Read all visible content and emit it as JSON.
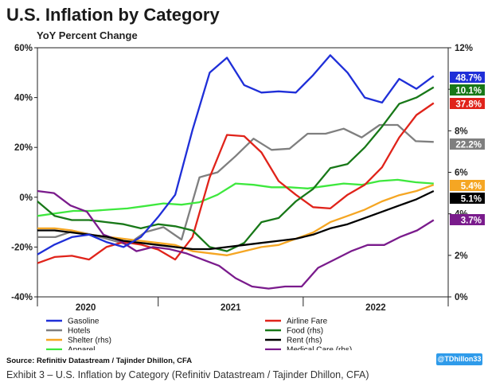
{
  "chart_data": {
    "type": "line",
    "title": "U.S. Inflation by Category",
    "subtitle": "YoY Percent Change",
    "left_axis": {
      "min": -40,
      "max": 60,
      "ticks": [
        60,
        40,
        20,
        0,
        -20,
        -40
      ],
      "tick_labels": [
        "60%",
        "40%",
        "20%",
        "0%",
        "-20%",
        "-40%"
      ]
    },
    "right_axis": {
      "min": 0,
      "max": 12,
      "ticks": [
        12,
        10,
        8,
        6,
        4,
        2,
        0
      ],
      "tick_labels": [
        "12%",
        "10%",
        "8%",
        "6%",
        "4%",
        "2%",
        "0%"
      ]
    },
    "x_axis": {
      "start": 2019.667,
      "end": 2022.5,
      "year_labels": [
        {
          "label": "2020",
          "x": 2020.0
        },
        {
          "label": "2021",
          "x": 2021.0
        },
        {
          "label": "2022",
          "x": 2022.0
        }
      ],
      "ticks": [
        2019.667,
        2020.5,
        2021.5,
        2022.5
      ]
    },
    "series": [
      {
        "name": "Gasoline",
        "legend": "Gasoline",
        "axis": "left",
        "color": "#1f2fd8",
        "end_label": "48.7%",
        "label_bg": "#1f2fd8",
        "label_fg": "#ffffff",
        "values": [
          -23,
          -19,
          -16,
          -15,
          -18,
          -20,
          -16,
          -8,
          1,
          27,
          50,
          56,
          45,
          42,
          42.5,
          42,
          49,
          57,
          50,
          40,
          38,
          47.5,
          43.5,
          48.7
        ]
      },
      {
        "name": "Hotels",
        "legend": "Hotels",
        "axis": "left",
        "color": "#7f7f7f",
        "end_label": "22.2%",
        "label_bg": "#7f7f7f",
        "label_fg": "#ffffff",
        "values": [
          -16,
          -16,
          -13.5,
          -15,
          -17,
          -19,
          -14,
          -12,
          -17,
          8,
          10,
          16.5,
          23.5,
          19,
          19.5,
          25.5,
          25.5,
          27.5,
          24,
          29,
          29,
          22.5,
          22.2
        ]
      },
      {
        "name": "Shelter",
        "legend": "Shelter (rhs)",
        "axis": "right",
        "color": "#f5a623",
        "end_label": "5.4%",
        "label_bg": "#f5a623",
        "label_fg": "#ffffff",
        "values": [
          3.3,
          3.3,
          3.2,
          3.0,
          2.9,
          2.8,
          2.7,
          2.6,
          2.5,
          2.2,
          2.1,
          2.0,
          2.2,
          2.4,
          2.5,
          2.8,
          3.1,
          3.6,
          3.9,
          4.2,
          4.6,
          4.9,
          5.1,
          5.4
        ]
      },
      {
        "name": "Apparel",
        "legend": "Apparel",
        "axis": "left",
        "color": "#3ee83e",
        "end_label": "",
        "label_bg": "",
        "label_fg": "",
        "values": [
          -7.5,
          -6.5,
          -5.5,
          -5.5,
          -5,
          -4.5,
          -3.5,
          -2.5,
          -3,
          -2,
          1,
          5.5,
          5,
          4,
          4,
          3.5,
          4.5,
          5.5,
          5,
          6.5,
          7,
          6,
          5.5
        ]
      },
      {
        "name": "Airline Fare",
        "legend": "Airline Fare",
        "axis": "left",
        "color": "#e0231a",
        "end_label": "37.8%",
        "label_bg": "#e0231a",
        "label_fg": "#ffffff",
        "values": [
          -26.5,
          -24,
          -23.5,
          -25,
          -20,
          -18,
          -19,
          -21,
          -25,
          -16,
          8,
          25,
          24.5,
          18,
          6.5,
          1,
          -4,
          -4.5,
          1,
          5,
          12,
          24,
          33,
          37.8
        ]
      },
      {
        "name": "Food",
        "legend": "Food (rhs)",
        "axis": "right",
        "color": "#187818",
        "end_label": "10.1%",
        "label_bg": "#187818",
        "label_fg": "#ffffff",
        "values": [
          4.6,
          3.9,
          3.7,
          3.7,
          3.6,
          3.5,
          3.3,
          3.5,
          3.4,
          3.2,
          2.4,
          2.2,
          2.6,
          3.6,
          3.8,
          4.6,
          5.2,
          6.2,
          6.4,
          7.2,
          8.2,
          9.3,
          9.6,
          10.1
        ]
      },
      {
        "name": "Rent",
        "legend": "Rent (rhs)",
        "axis": "right",
        "color": "#000000",
        "end_label": "5.1%",
        "label_bg": "#000000",
        "label_fg": "#ffffff",
        "values": [
          3.2,
          3.2,
          3.1,
          3.0,
          2.9,
          2.7,
          2.6,
          2.5,
          2.4,
          2.3,
          2.3,
          2.4,
          2.5,
          2.6,
          2.7,
          2.8,
          3.0,
          3.3,
          3.5,
          3.8,
          4.1,
          4.4,
          4.7,
          5.1
        ]
      },
      {
        "name": "Medical Care",
        "legend": "Medical Care (rhs)",
        "axis": "right",
        "color": "#7a1b8c",
        "end_label": "3.7%",
        "label_bg": "#7a1b8c",
        "label_fg": "#ffffff",
        "values": [
          5.1,
          5.0,
          4.4,
          4.1,
          3.0,
          2.7,
          2.2,
          2.4,
          2.3,
          2.1,
          1.8,
          1.5,
          0.9,
          0.5,
          0.4,
          0.5,
          0.5,
          1.4,
          1.8,
          2.2,
          2.5,
          2.5,
          2.9,
          3.2,
          3.7
        ]
      }
    ]
  },
  "source": "Source: Refinitiv Datastream / Tajinder Dhillon, CFA",
  "handle": "@TDhillon33",
  "caption": "Exhibit 3 – U.S. Inflation by Category (Refinitiv Datastream / Tajinder Dhillon, CFA)"
}
